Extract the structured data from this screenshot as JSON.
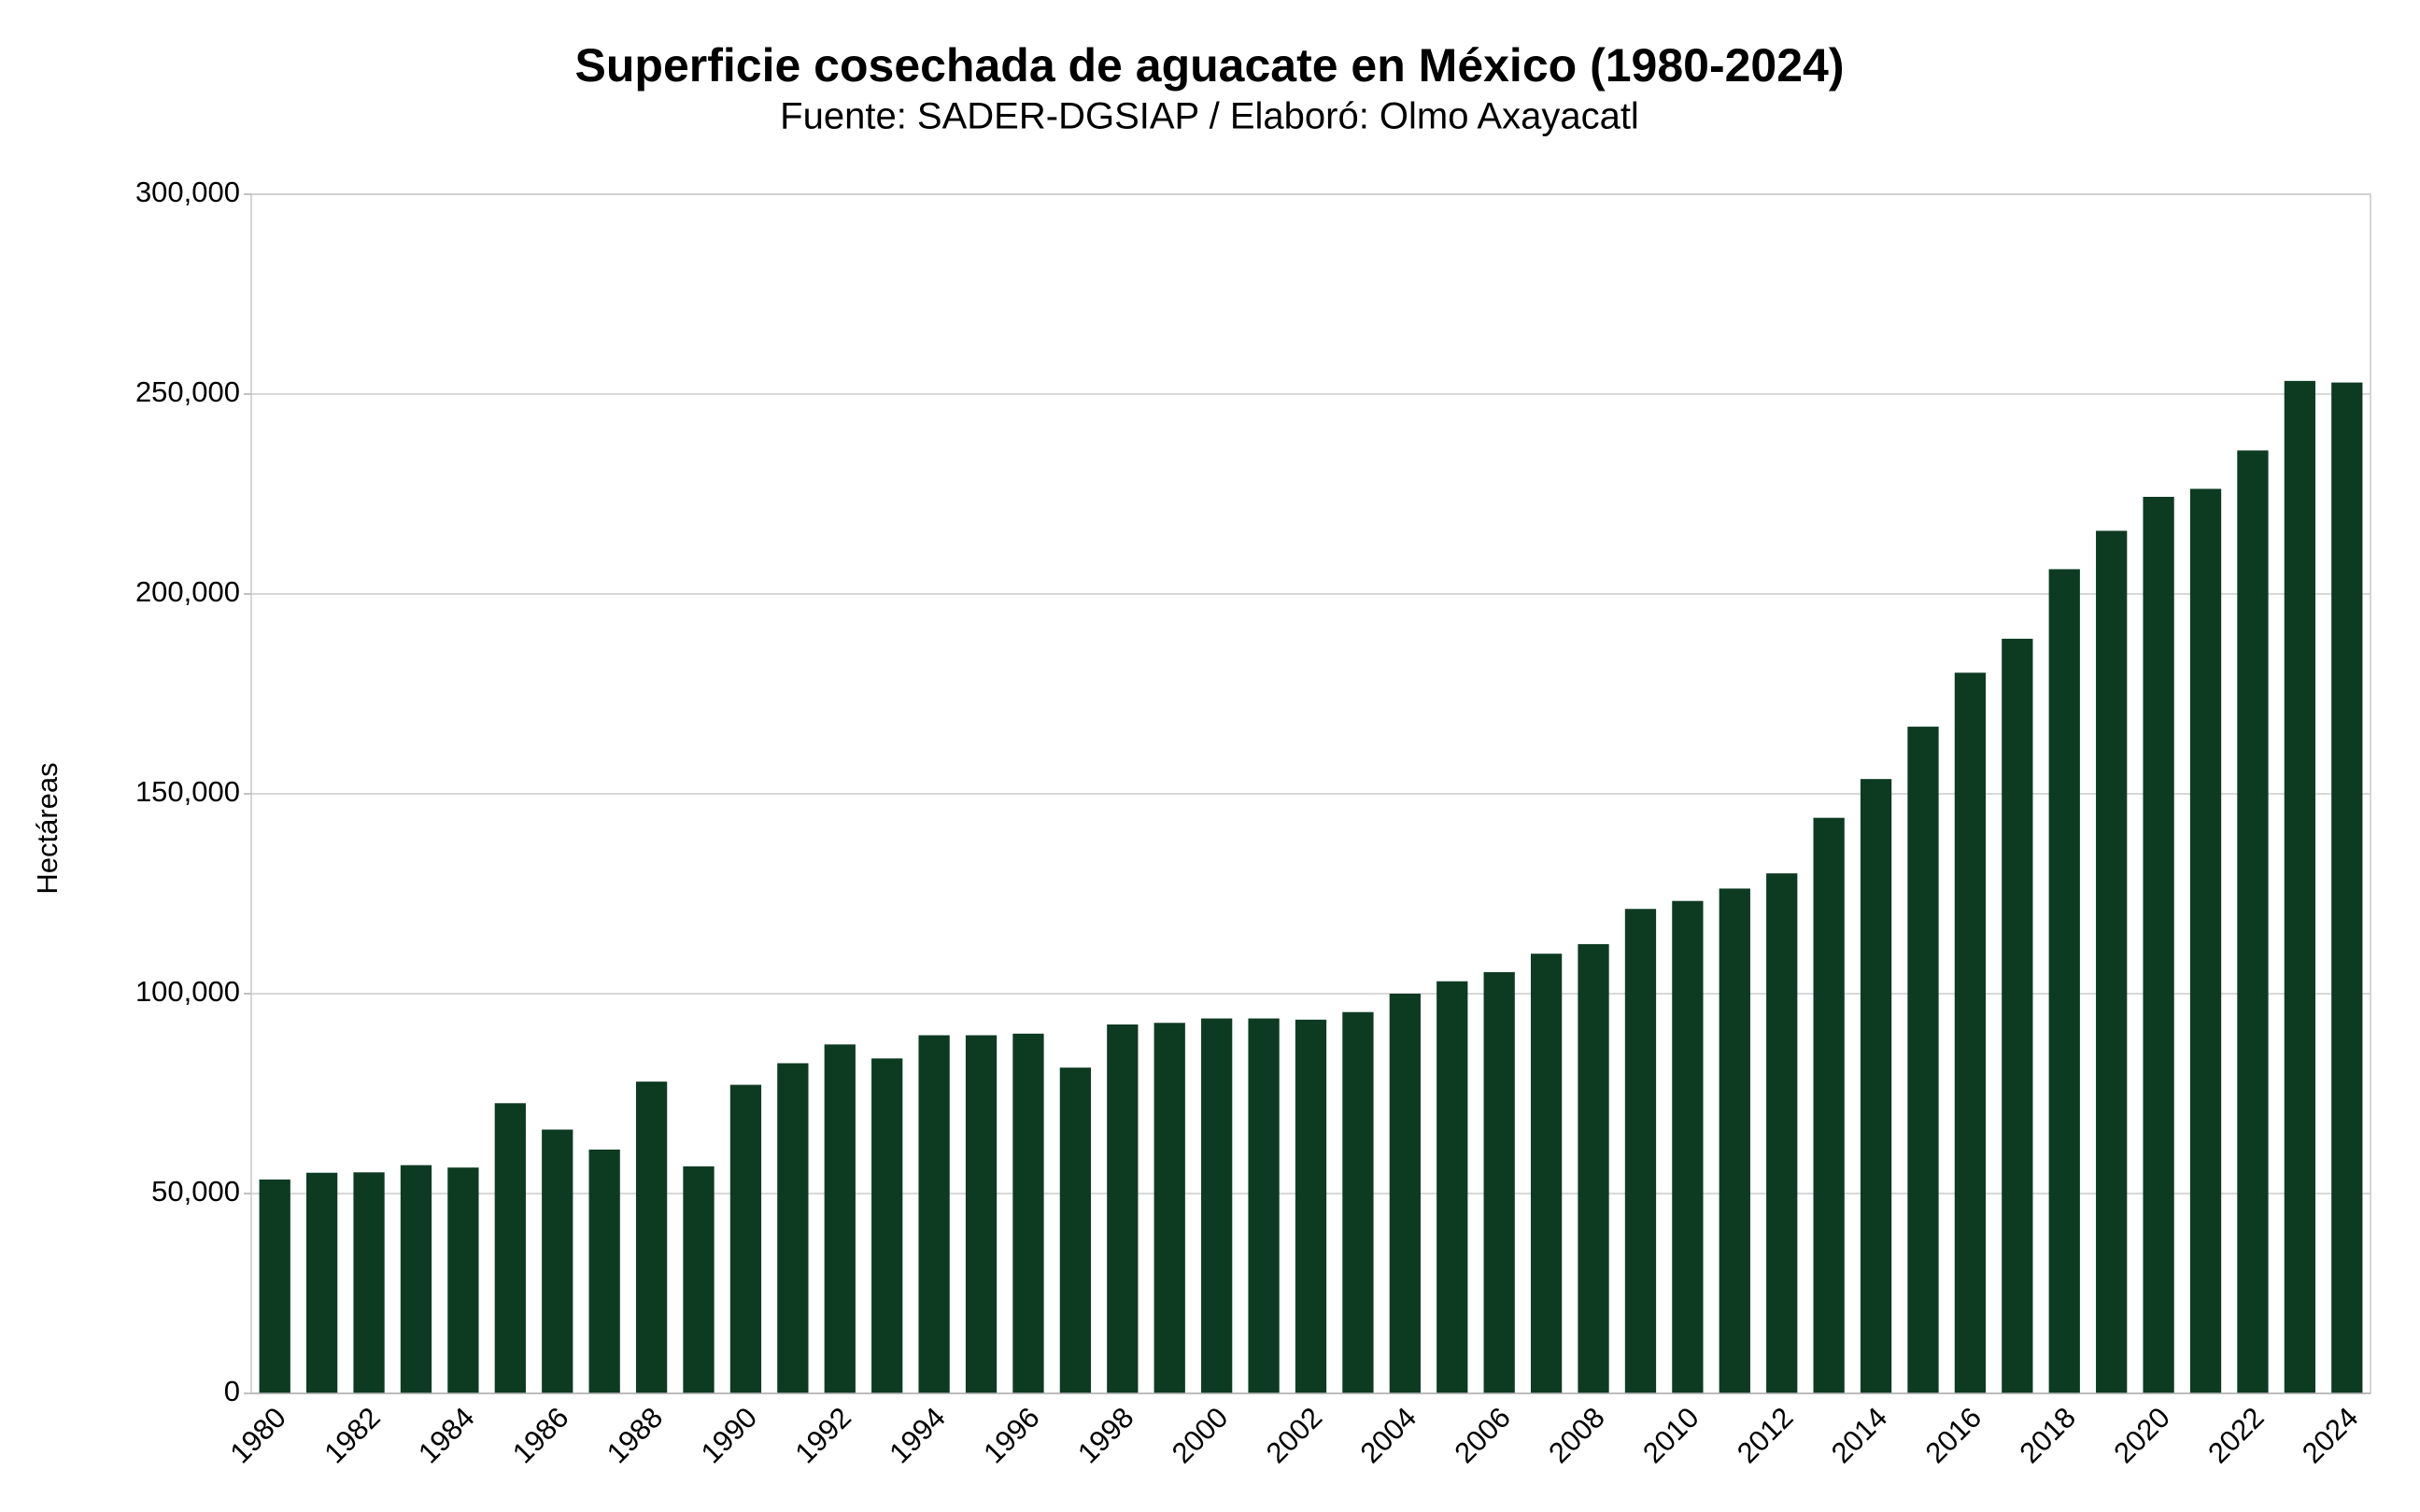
{
  "chart_data": {
    "type": "bar",
    "title": "Superficie cosechada de aguacate en México (1980-2024)",
    "subtitle": "Fuente: SADER-DGSIAP / Elaboró: Olmo Axayacatl",
    "y_label": "Hectáreas",
    "categories": [
      "1980",
      null,
      "1982",
      null,
      "1984",
      null,
      "1986",
      null,
      "1988",
      null,
      "1990",
      null,
      "1992",
      null,
      "1994",
      null,
      "1996",
      null,
      "1998",
      null,
      "2000",
      null,
      "2002",
      null,
      "2004",
      null,
      "2006",
      null,
      "2008",
      null,
      "2010",
      null,
      "2012",
      null,
      "2014",
      null,
      "2016",
      null,
      "2018",
      null,
      "2020",
      null,
      "2022",
      null,
      "2024"
    ],
    "values": [
      53500,
      55200,
      55300,
      57100,
      56500,
      72600,
      66000,
      61000,
      78000,
      56800,
      77200,
      82600,
      87300,
      83800,
      89600,
      89600,
      90000,
      81500,
      92300,
      92700,
      93800,
      93800,
      93500,
      95400,
      100000,
      103100,
      105400,
      110000,
      112400,
      121200,
      123200,
      126300,
      130100,
      144000,
      153700,
      166800,
      180300,
      188800,
      206200,
      215800,
      224300,
      226300,
      235900,
      253300,
      252900
    ],
    "color": "#0d3b22",
    "ylim": [
      0,
      300000
    ],
    "yticks": [
      0,
      {
        "value": 50000,
        "label": "50,000"
      },
      {
        "value": 100000,
        "label": "100,000"
      },
      {
        "value": 150000,
        "label": "150,000"
      },
      {
        "value": 200000,
        "label": "200,000"
      },
      {
        "value": 250000,
        "label": "250,000"
      },
      {
        "value": 300000,
        "label": "300,000"
      }
    ],
    "grid": true
  }
}
